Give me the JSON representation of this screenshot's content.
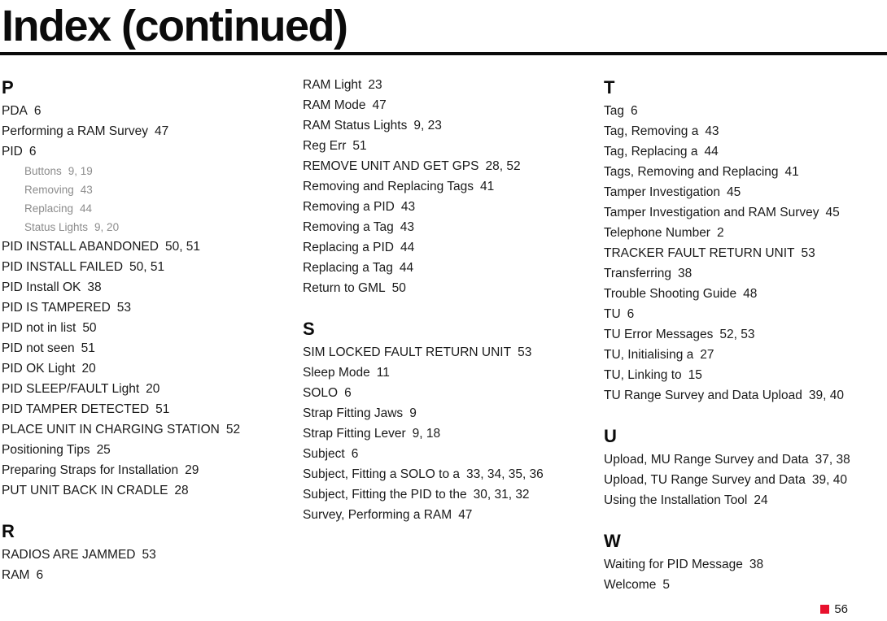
{
  "title": "Index (continued)",
  "footer": {
    "page_number": "56",
    "marker_color": "#e8112d"
  },
  "columns": [
    {
      "blocks": [
        {
          "letter": "P",
          "entries": [
            {
              "label": "PDA",
              "pages": "6"
            },
            {
              "label": "Performing a RAM Survey",
              "pages": "47"
            },
            {
              "label": "PID",
              "pages": "6"
            },
            {
              "label": "Buttons",
              "pages": "9, 19",
              "sub": true
            },
            {
              "label": "Removing",
              "pages": "43",
              "sub": true
            },
            {
              "label": "Replacing",
              "pages": "44",
              "sub": true
            },
            {
              "label": "Status Lights",
              "pages": "9, 20",
              "sub": true
            },
            {
              "label": "PID INSTALL ABANDONED",
              "pages": "50, 51"
            },
            {
              "label": "PID INSTALL FAILED",
              "pages": "50, 51"
            },
            {
              "label": "PID Install OK",
              "pages": "38"
            },
            {
              "label": "PID IS TAMPERED",
              "pages": "53"
            },
            {
              "label": "PID not in list",
              "pages": "50"
            },
            {
              "label": "PID not seen",
              "pages": "51"
            },
            {
              "label": "PID OK Light",
              "pages": "20"
            },
            {
              "label": "PID SLEEP/FAULT Light",
              "pages": "20"
            },
            {
              "label": "PID TAMPER DETECTED",
              "pages": "51"
            },
            {
              "label": "PLACE UNIT IN CHARGING STATION",
              "pages": "52"
            },
            {
              "label": "Positioning Tips",
              "pages": "25"
            },
            {
              "label": "Preparing Straps for Installation",
              "pages": "29"
            },
            {
              "label": "PUT UNIT BACK IN CRADLE",
              "pages": "28"
            }
          ]
        },
        {
          "letter": "R",
          "entries": [
            {
              "label": "RADIOS ARE JAMMED",
              "pages": "53"
            },
            {
              "label": "RAM",
              "pages": "6"
            }
          ]
        }
      ]
    },
    {
      "blocks": [
        {
          "letter": null,
          "entries": [
            {
              "label": "RAM Light",
              "pages": "23"
            },
            {
              "label": "RAM Mode",
              "pages": "47"
            },
            {
              "label": "RAM Status Lights",
              "pages": "9, 23"
            },
            {
              "label": "Reg Err",
              "pages": "51"
            },
            {
              "label": "REMOVE UNIT AND GET GPS",
              "pages": "28, 52"
            },
            {
              "label": "Removing and Replacing Tags",
              "pages": "41"
            },
            {
              "label": "Removing a PID",
              "pages": "43"
            },
            {
              "label": "Removing a Tag",
              "pages": "43"
            },
            {
              "label": "Replacing a PID",
              "pages": "44"
            },
            {
              "label": "Replacing a Tag",
              "pages": "44"
            },
            {
              "label": "Return to GML",
              "pages": "50"
            }
          ]
        },
        {
          "letter": "S",
          "entries": [
            {
              "label": "SIM LOCKED FAULT RETURN UNIT",
              "pages": "53"
            },
            {
              "label": "Sleep Mode",
              "pages": "11"
            },
            {
              "label": "SOLO",
              "pages": "6"
            },
            {
              "label": "Strap Fitting Jaws",
              "pages": "9"
            },
            {
              "label": "Strap Fitting Lever",
              "pages": "9, 18"
            },
            {
              "label": "Subject",
              "pages": "6"
            },
            {
              "label": "Subject, Fitting a SOLO to a",
              "pages": "33, 34, 35, 36"
            },
            {
              "label": "Subject, Fitting the PID to the",
              "pages": "30, 31, 32"
            },
            {
              "label": "Survey, Performing a RAM",
              "pages": "47"
            }
          ]
        }
      ]
    },
    {
      "blocks": [
        {
          "letter": "T",
          "entries": [
            {
              "label": "Tag",
              "pages": "6"
            },
            {
              "label": "Tag, Removing a",
              "pages": "43"
            },
            {
              "label": "Tag, Replacing a",
              "pages": "44"
            },
            {
              "label": "Tags, Removing and Replacing",
              "pages": "41"
            },
            {
              "label": "Tamper Investigation",
              "pages": "45"
            },
            {
              "label": "Tamper Investigation and RAM Survey",
              "pages": "45"
            },
            {
              "label": "Telephone Number",
              "pages": "2"
            },
            {
              "label": "TRACKER FAULT RETURN UNIT",
              "pages": "53"
            },
            {
              "label": "Transferring",
              "pages": "38"
            },
            {
              "label": "Trouble Shooting Guide",
              "pages": "48"
            },
            {
              "label": "TU",
              "pages": "6"
            },
            {
              "label": "TU Error Messages",
              "pages": "52, 53"
            },
            {
              "label": "TU, Initialising a",
              "pages": "27"
            },
            {
              "label": "TU, Linking to",
              "pages": "15"
            },
            {
              "label": "TU Range Survey and Data Upload",
              "pages": "39, 40"
            }
          ]
        },
        {
          "letter": "U",
          "entries": [
            {
              "label": "Upload, MU Range Survey and Data",
              "pages": "37, 38"
            },
            {
              "label": "Upload, TU Range Survey and Data",
              "pages": "39, 40"
            },
            {
              "label": "Using the Installation Tool",
              "pages": "24"
            }
          ]
        },
        {
          "letter": "W",
          "entries": [
            {
              "label": "Waiting for PID Message",
              "pages": "38"
            },
            {
              "label": "Welcome",
              "pages": "5"
            }
          ]
        }
      ]
    }
  ]
}
